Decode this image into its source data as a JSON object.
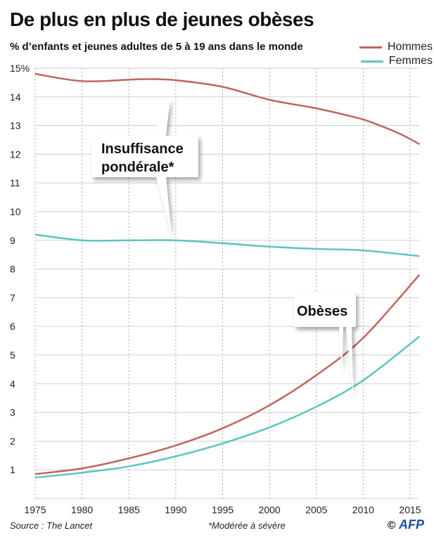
{
  "chart_data": {
    "type": "line",
    "title": "De plus en plus de jeunes obèses",
    "subtitle": "% d’enfants et jeunes adultes de 5 à 19 ans dans le monde",
    "xlabel": "",
    "ylabel": "%",
    "xlim": [
      1975,
      2016
    ],
    "ylim": [
      0,
      15
    ],
    "x_ticks": [
      "1975",
      "1980",
      "1985",
      "1990",
      "1995",
      "2000",
      "2005",
      "2010",
      "2015"
    ],
    "y_ticks": [
      "1",
      "2",
      "3",
      "4",
      "5",
      "6",
      "7",
      "8",
      "9",
      "10",
      "11",
      "12",
      "13",
      "14",
      "15%"
    ],
    "grid": true,
    "legend_position": "top-right",
    "legend": [
      {
        "name": "Hommes",
        "color": "#c0665e"
      },
      {
        "name": "Femmes",
        "color": "#5ec4bf"
      }
    ],
    "series": [
      {
        "name": "Hommes – Insuffisance pondérale",
        "color": "#c0665e",
        "x": [
          1975,
          1980,
          1985,
          1987,
          1990,
          1995,
          2000,
          2005,
          2009,
          2011,
          2014,
          2016
        ],
        "y": [
          14.8,
          14.55,
          14.6,
          14.62,
          14.58,
          14.35,
          13.9,
          13.6,
          13.3,
          13.1,
          12.7,
          12.35
        ]
      },
      {
        "name": "Femmes – Insuffisance pondérale",
        "color": "#5ec4bf",
        "x": [
          1975,
          1980,
          1985,
          1990,
          1995,
          2000,
          2005,
          2010,
          2016
        ],
        "y": [
          9.2,
          9.0,
          9.0,
          9.0,
          8.9,
          8.78,
          8.7,
          8.65,
          8.45
        ]
      },
      {
        "name": "Hommes – Obèses",
        "color": "#c0665e",
        "x": [
          1975,
          1980,
          1985,
          1990,
          1995,
          2000,
          2005,
          2010,
          2016
        ],
        "y": [
          0.85,
          1.05,
          1.4,
          1.85,
          2.45,
          3.25,
          4.3,
          5.6,
          7.8
        ]
      },
      {
        "name": "Femmes – Obèses",
        "color": "#5ec4bf",
        "x": [
          1975,
          1980,
          1985,
          1990,
          1995,
          2000,
          2005,
          2010,
          2016
        ],
        "y": [
          0.73,
          0.9,
          1.12,
          1.47,
          1.92,
          2.48,
          3.2,
          4.12,
          5.65
        ]
      }
    ],
    "annotations": [
      {
        "text_line1": "Insuffisance",
        "text_line2": "pondérale*"
      },
      {
        "text_line1": "Obèses"
      }
    ]
  },
  "footer": {
    "source": "Source : The Lancet",
    "note": "*Modérée à sévère",
    "credit_symbol": "©",
    "credit_brand": "AFP"
  }
}
